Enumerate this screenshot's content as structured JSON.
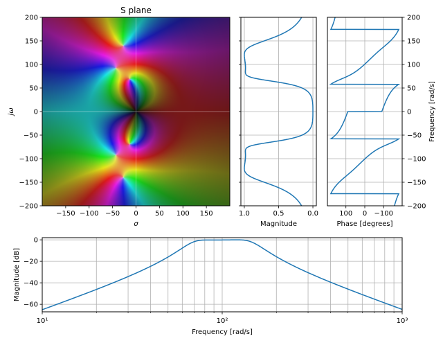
{
  "series_color": "#1f77b4",
  "chart_data": [
    {
      "type": "heatmap",
      "title": "S plane",
      "xlabel": "σ",
      "ylabel": "jω",
      "xlim": [
        -200,
        200
      ],
      "ylim": [
        -200,
        200
      ],
      "xticks": [
        -150,
        -100,
        -50,
        0,
        50,
        100,
        150
      ],
      "xtick_labels": [
        "−150",
        "−100",
        "−50",
        "0",
        "50",
        "100",
        "150"
      ],
      "yticks": [
        -200,
        -150,
        -100,
        -50,
        0,
        50,
        100,
        150,
        200
      ],
      "ytick_labels": [
        "−200",
        "−150",
        "−100",
        "−50",
        "0",
        "50",
        "100",
        "150",
        "200"
      ],
      "poles": [
        [
          -27,
          140
        ],
        [
          -27,
          -140
        ],
        [
          -43,
          92
        ],
        [
          -43,
          -92
        ],
        [
          -13,
          69
        ],
        [
          -13,
          -69
        ]
      ],
      "zeros": [
        [
          0,
          0
        ],
        [
          0,
          0
        ],
        [
          0,
          0
        ]
      ],
      "coloring": "hue = phase, brightness = magnitude"
    },
    {
      "type": "line",
      "xlabel": "Magnitude",
      "xlim": [
        1.05,
        -0.05
      ],
      "xticks": [
        1.0,
        0.5,
        0.0
      ],
      "xtick_labels": [
        "1.0",
        "0.5",
        "0.0"
      ],
      "ylim": [
        -200,
        200
      ],
      "yticks": [
        -200,
        -150,
        -100,
        -50,
        0,
        50,
        100,
        150,
        200
      ],
      "grid": true
    },
    {
      "type": "line",
      "xlabel": "Phase [degrees]",
      "ylabel": "Frequency [rad/s]",
      "xlim": [
        198,
        -198
      ],
      "xticks": [
        100,
        0,
        -100
      ],
      "xtick_labels": [
        "100",
        "0",
        "−100"
      ],
      "ylim": [
        -200,
        200
      ],
      "yticks": [
        -200,
        -150,
        -100,
        -50,
        0,
        50,
        100,
        150,
        200
      ],
      "ytick_labels": [
        "−200",
        "−150",
        "−100",
        "−50",
        "0",
        "50",
        "100",
        "150",
        "200"
      ],
      "yaxis_side": "right",
      "grid": true
    },
    {
      "type": "line",
      "xscale": "log",
      "xlabel": "Frequency [rad/s]",
      "ylabel": "Magnitude [dB]",
      "xlim": [
        10,
        1000
      ],
      "xticks": [
        10,
        100,
        1000
      ],
      "xtick_labels": [
        "10¹",
        "10²",
        "10³"
      ],
      "ylim": [
        -67,
        2
      ],
      "yticks": [
        0,
        -20,
        -40,
        -60
      ],
      "ytick_labels": [
        "0",
        "−20",
        "−40",
        "−60"
      ],
      "grid": true
    }
  ]
}
